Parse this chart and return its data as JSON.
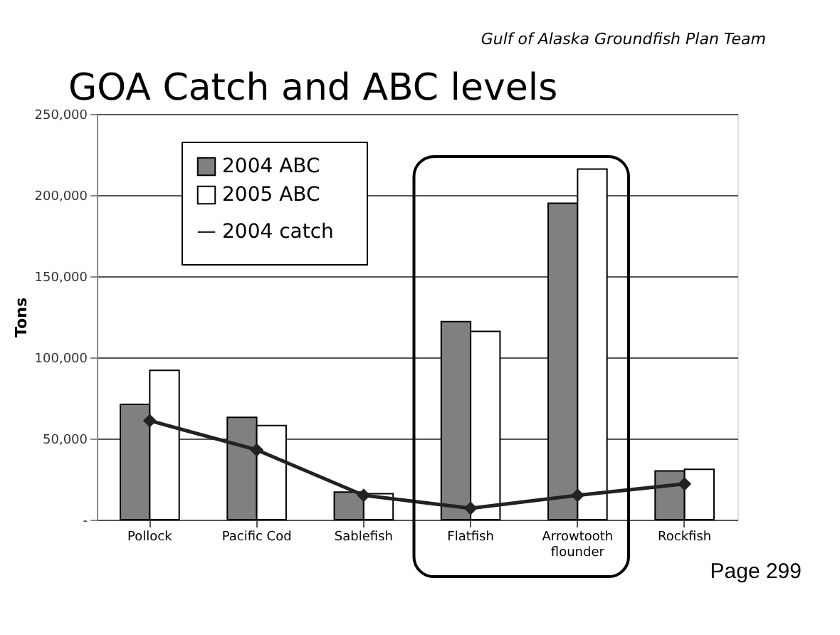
{
  "chart_data": {
    "type": "bar",
    "title": "GOA Catch and ABC levels",
    "ylabel": "Tons",
    "annotations": [
      "Gulf of Alaska Groundfish Plan Team",
      "Page 299"
    ],
    "categories": [
      "Pollock",
      "Pacific Cod",
      "Sablefish",
      "Flatfish",
      "Arrowtooth flounder",
      "Rockfish"
    ],
    "series": [
      {
        "name": "2004 ABC",
        "color": "#808080",
        "values": [
          71000,
          63000,
          17000,
          122000,
          195000,
          30000
        ]
      },
      {
        "name": "2005 ABC",
        "color": "#ffffff",
        "values": [
          92000,
          58000,
          16000,
          116000,
          216000,
          31000
        ]
      },
      {
        "name": "2004 catch",
        "type": "line",
        "color": "#222222",
        "marker": "diamond",
        "values": [
          61000,
          43000,
          15000,
          7000,
          15000,
          22000
        ]
      }
    ],
    "ylim": [
      0,
      250000
    ],
    "yticks": [
      {
        "value": 0,
        "label": "-"
      },
      {
        "value": 50000,
        "label": "50,000"
      },
      {
        "value": 100000,
        "label": "100,000"
      },
      {
        "value": 150000,
        "label": "150,000"
      },
      {
        "value": 200000,
        "label": "200,000"
      },
      {
        "value": 250000,
        "label": "250,000"
      }
    ],
    "grid": "y",
    "legend": "top left"
  }
}
